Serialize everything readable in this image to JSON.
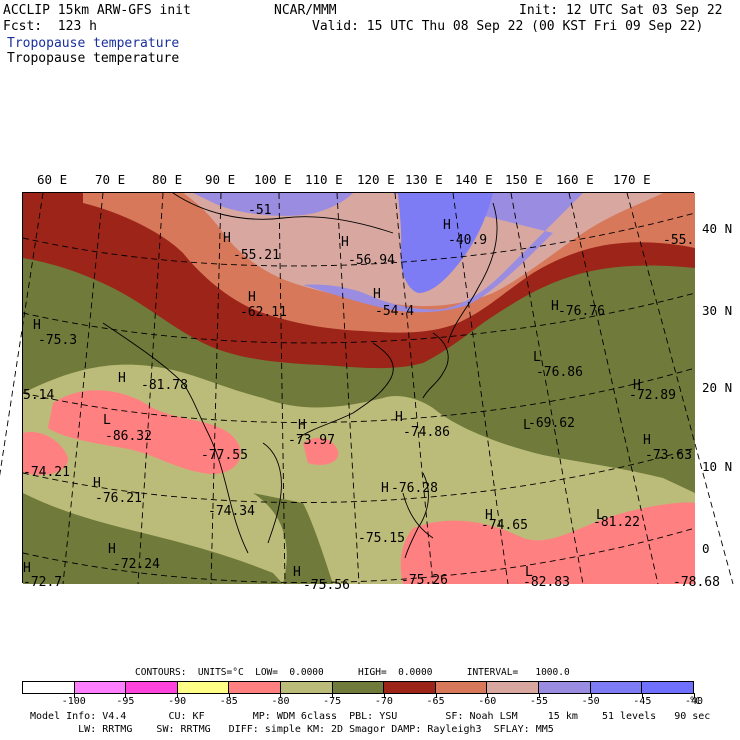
{
  "header": {
    "model": "ACCLIP 15km ARW-GFS init",
    "fcst": "Fcst:  123 h",
    "org": "NCAR/MMM",
    "init": "Init: 12 UTC Sat 03 Sep 22",
    "valid": "Valid: 15 UTC Thu 08 Sep 22 (00 KST Fri 09 Sep 22)",
    "field_blue": "Tropopause temperature",
    "field_black": "Tropopause temperature"
  },
  "map": {
    "lon_labels": [
      "60 E",
      "70 E",
      "80 E",
      "90 E",
      "100 E",
      "110 E",
      "120 E",
      "130 E",
      "140 E",
      "150 E",
      "160 E",
      "170 E"
    ],
    "lat_labels": [
      "40 N",
      "30 N",
      "20 N",
      "10 N",
      "0"
    ],
    "annotations": [
      {
        "t": "H"
      },
      {
        "t": "-55.21"
      },
      {
        "t": "H"
      },
      {
        "t": "-56.94"
      },
      {
        "t": "H"
      },
      {
        "t": "-40.9"
      },
      {
        "t": "-55."
      },
      {
        "t": "H"
      },
      {
        "t": "-62.11"
      },
      {
        "t": "H"
      },
      {
        "t": "-54.4"
      },
      {
        "t": "H"
      },
      {
        "t": "-76.76"
      },
      {
        "t": "H"
      },
      {
        "t": "-75.3"
      },
      {
        "t": "H"
      },
      {
        "t": "-81.78"
      },
      {
        "t": "5.14"
      },
      {
        "t": "L"
      },
      {
        "t": "-76.86"
      },
      {
        "t": "H"
      },
      {
        "t": "-72.89"
      },
      {
        "t": "L"
      },
      {
        "t": "-86.32"
      },
      {
        "t": "-77.55"
      },
      {
        "t": "H"
      },
      {
        "t": "-73.97"
      },
      {
        "t": "H"
      },
      {
        "t": "-74.86"
      },
      {
        "t": "L"
      },
      {
        "t": "-69.62"
      },
      {
        "t": "H"
      },
      {
        "t": "-73.63"
      },
      {
        "t": "-74.21"
      },
      {
        "t": "H"
      },
      {
        "t": "-76.21"
      },
      {
        "t": "-74.34"
      },
      {
        "t": "H"
      },
      {
        "t": "-76.28"
      },
      {
        "t": "H"
      },
      {
        "t": "-74.65"
      },
      {
        "t": "L"
      },
      {
        "t": "-81.22"
      },
      {
        "t": "-75.15"
      },
      {
        "t": "H"
      },
      {
        "t": "-72.24"
      },
      {
        "t": "H"
      },
      {
        "t": "-72.7"
      },
      {
        "t": "-75.56"
      },
      {
        "t": "H"
      },
      {
        "t": "-75.26"
      },
      {
        "t": "L"
      },
      {
        "t": "-82.83"
      },
      {
        "t": "-78.68"
      },
      {
        "t": "-51"
      }
    ],
    "colors": {
      "lt_minus100": "#ffffff",
      "m100_m95": "#ff80ff",
      "m95_m90": "#ff44dd",
      "m90_m85": "#ffff88",
      "m85_m80": "#ff8080",
      "m80_m75": "#bcbc7a",
      "m75_m70": "#707a3a",
      "m70_m65": "#9c2418",
      "m65_m60": "#d8785a",
      "m60_m55": "#d8a8a0",
      "m55_m50": "#9a8ce0",
      "m50_m45": "#7e7cf4",
      "gt_m45": "#7070ff"
    }
  },
  "legend": {
    "contours": "CONTOURS:  UNITS=°C  LOW=  0.0000      HIGH=  0.0000      INTERVAL=   1000.0",
    "ticks": [
      "-100",
      "-95",
      "-90",
      "-85",
      "-80",
      "-75",
      "-70",
      "-65",
      "-60",
      "-55",
      "-50",
      "-45",
      "-40"
    ],
    "unit": "°C",
    "bins": [
      "#ffffff",
      "#ff80ff",
      "#ff44dd",
      "#ffff88",
      "#ff8080",
      "#bcbc7a",
      "#707a3a",
      "#9c2418",
      "#d8785a",
      "#d8a8a0",
      "#9a8ce0",
      "#7e7cf4",
      "#7070ff"
    ]
  },
  "model_info": {
    "line1": "Model Info: V4.4       CU: KF        MP: WDM 6class  PBL: YSU        SF: Noah LSM     15 km    51 levels   90 sec",
    "line2": "        LW: RRTMG    SW: RRTMG   DIFF: simple KM: 2D Smagor DAMP: Rayleigh3  SFLAY: MM5"
  }
}
